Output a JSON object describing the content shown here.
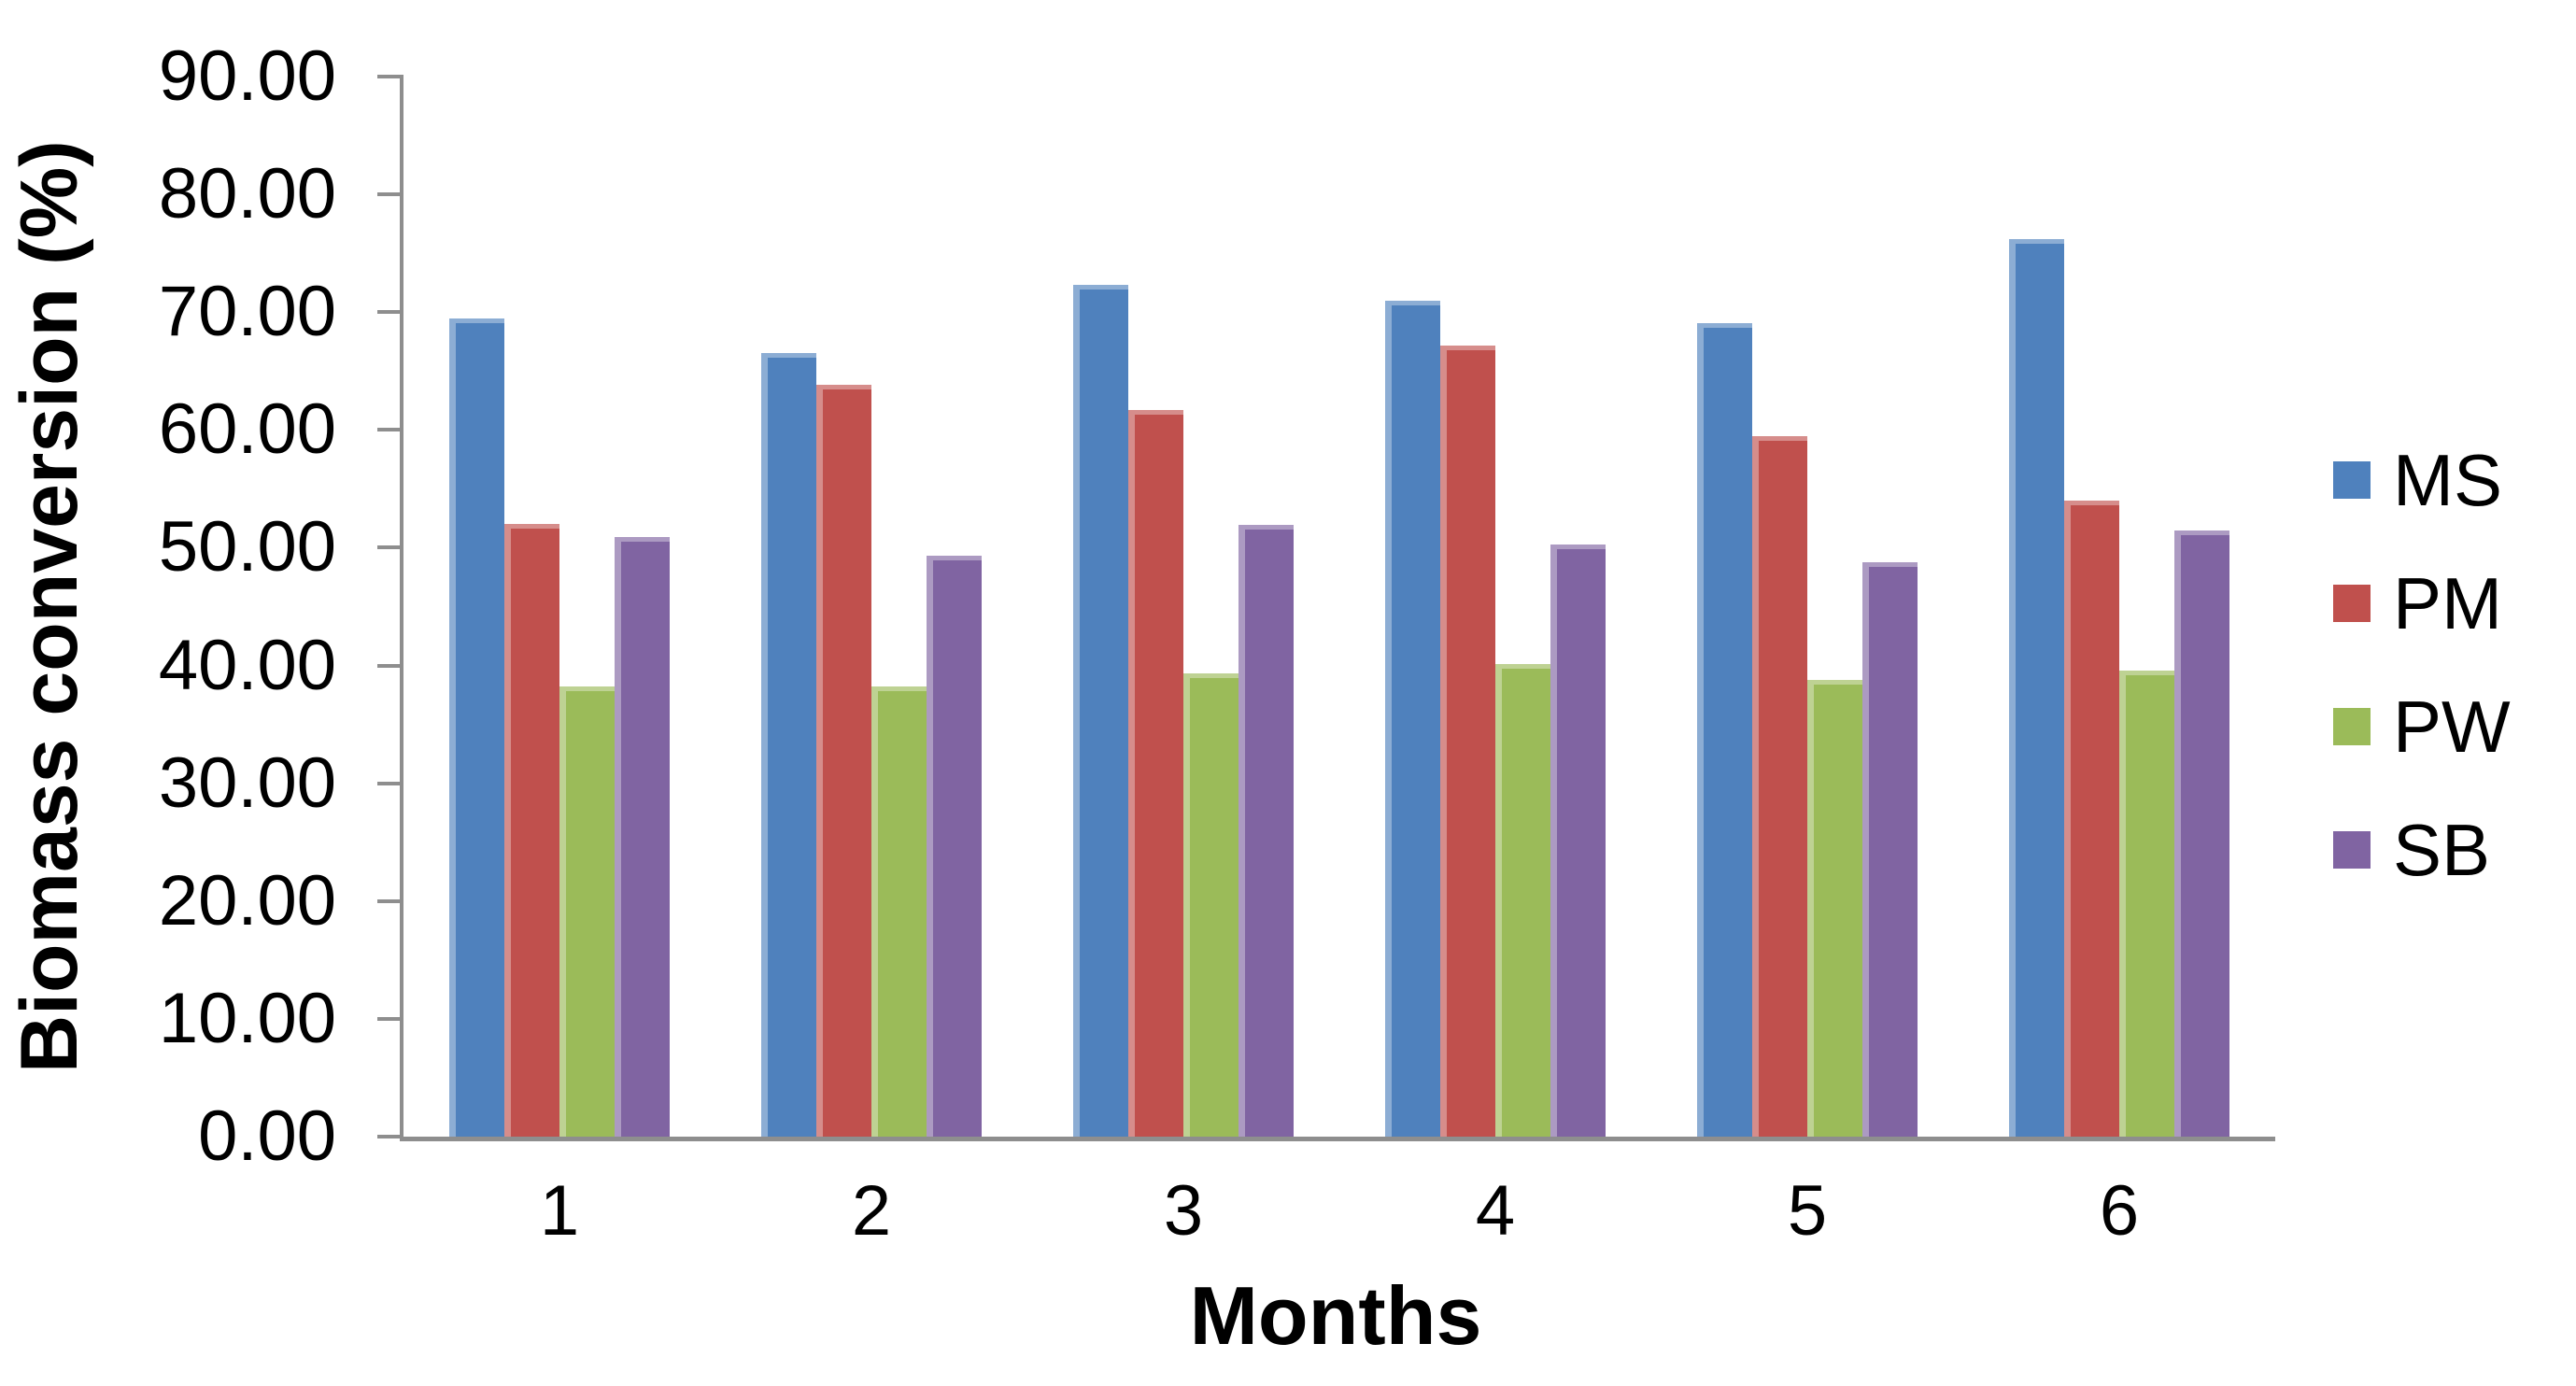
{
  "chart_data": {
    "type": "bar",
    "title": "",
    "xlabel": "Months",
    "ylabel": "Biomass conversion (%)",
    "ylim": [
      0,
      90
    ],
    "y_tick_step": 10,
    "y_tick_labels": [
      "0.00",
      "10.00",
      "20.00",
      "30.00",
      "40.00",
      "50.00",
      "60.00",
      "70.00",
      "80.00",
      "90.00"
    ],
    "categories": [
      "1",
      "2",
      "3",
      "4",
      "5",
      "6"
    ],
    "series": [
      {
        "name": "MS",
        "color": "#4F81BD",
        "values": [
          69.5,
          66.5,
          72.3,
          71.0,
          69.1,
          76.2
        ]
      },
      {
        "name": "PM",
        "color": "#C0504D",
        "values": [
          52.0,
          63.8,
          61.7,
          67.2,
          59.5,
          54.0
        ]
      },
      {
        "name": "PW",
        "color": "#9BBB59",
        "values": [
          38.2,
          38.2,
          39.3,
          40.1,
          38.8,
          39.6
        ]
      },
      {
        "name": "SB",
        "color": "#8064A2",
        "values": [
          50.9,
          49.3,
          51.9,
          50.3,
          48.8,
          51.5
        ]
      }
    ],
    "legend_position": "right",
    "grid": false,
    "axis_color": "#8E8E8E",
    "text_color": "#000000",
    "background": "#FFFFFF"
  }
}
